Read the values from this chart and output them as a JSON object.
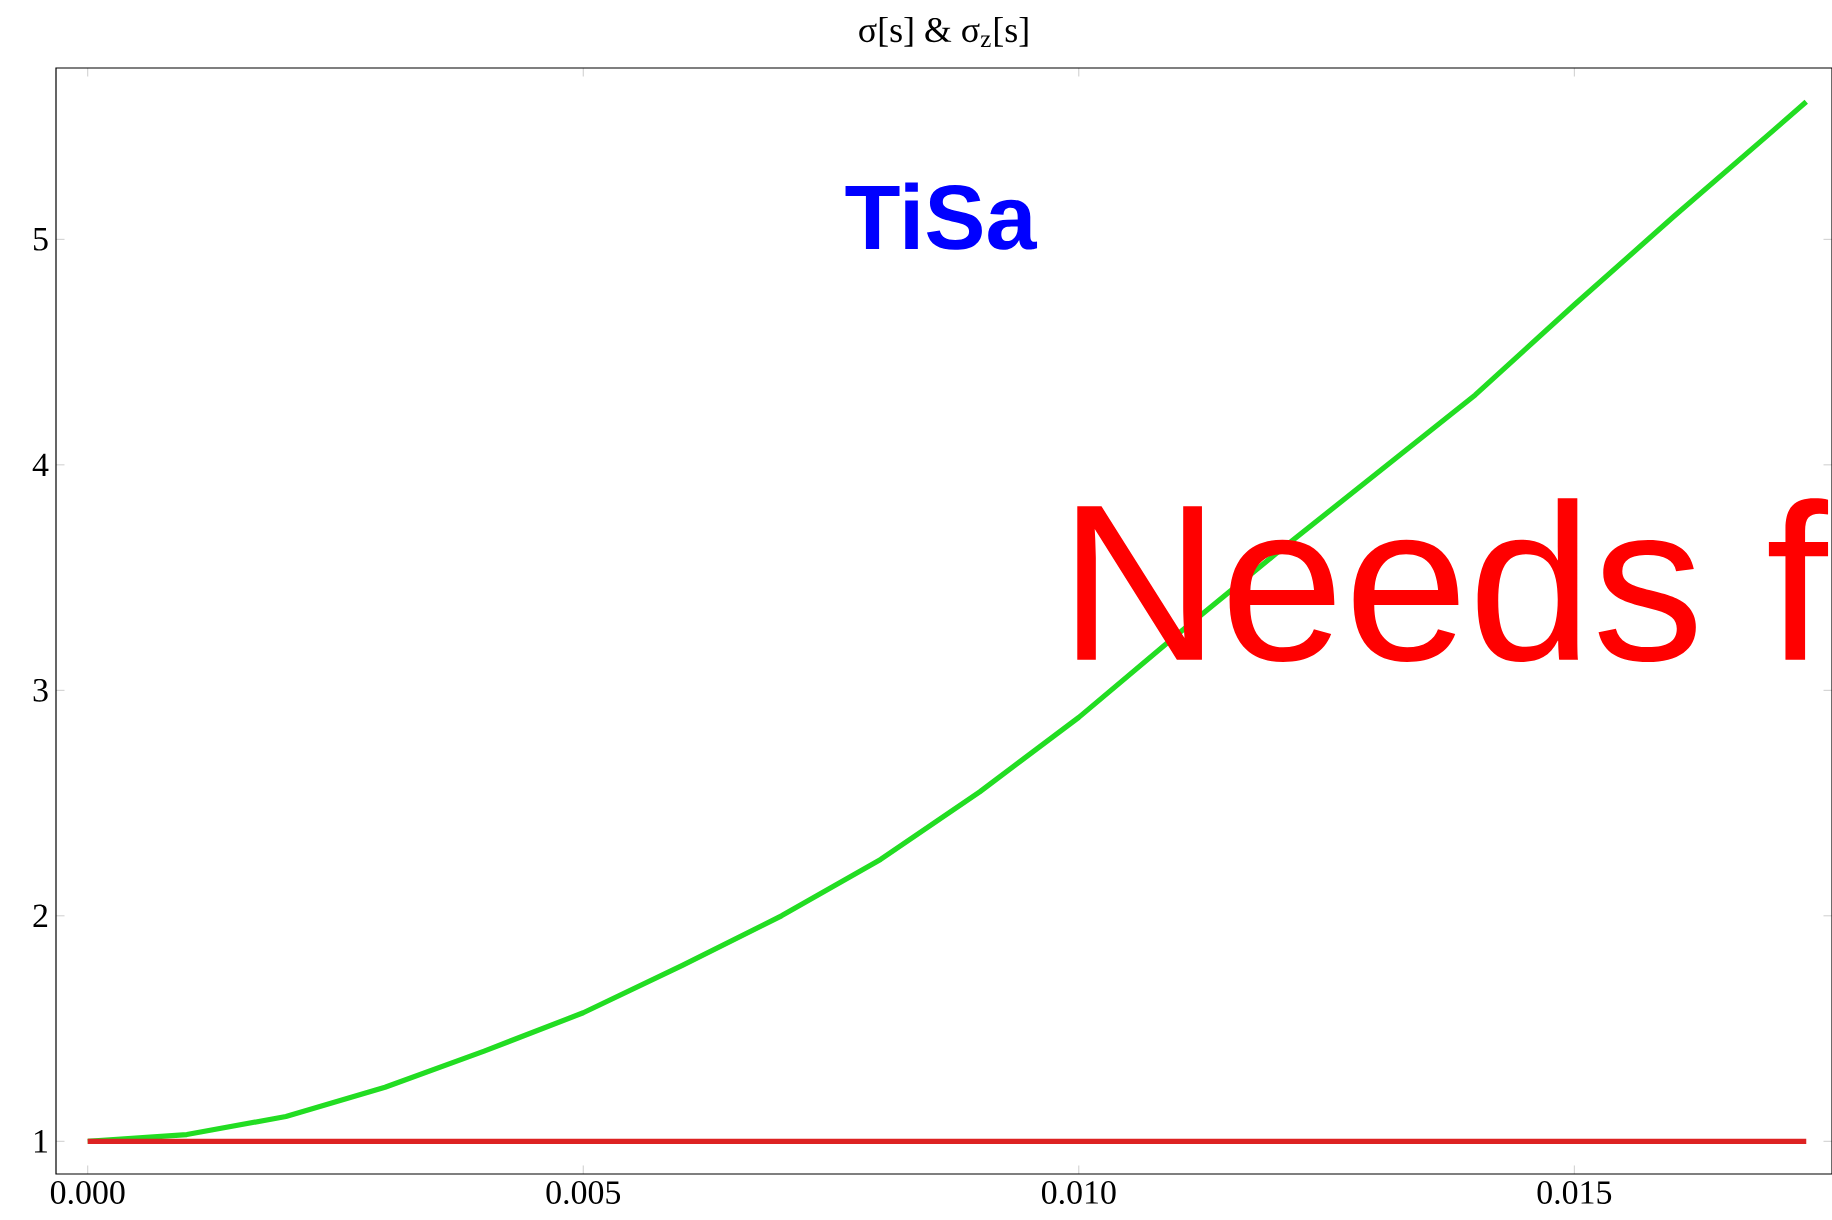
{
  "chart_data": {
    "type": "line",
    "title": "σ[s] & σ$_{z}$[s]",
    "annotations": [
      "TiSa",
      "Needs f"
    ],
    "series": [
      {
        "color": "#22dd22",
        "x": [
          0,
          0.001,
          0.002,
          0.003,
          0.004,
          0.005,
          0.006,
          0.007,
          0.008,
          0.009,
          0.01,
          0.011,
          0.012,
          0.013,
          0.014,
          0.015,
          0.016,
          0.017,
          0.01734
        ],
        "values": [
          1,
          1.03,
          1.11,
          1.24,
          1.4,
          1.57,
          1.78,
          2.0,
          2.25,
          2.55,
          2.88,
          3.25,
          3.61,
          3.96,
          4.31,
          4.71,
          5.1,
          5.48,
          5.61
        ]
      },
      {
        "color": "#dd2222",
        "x": [
          0,
          0.00734,
          0.01734
        ],
        "values": [
          1,
          1,
          1
        ]
      }
    ],
    "xlim": [
      -0.00032,
      0.0176
    ],
    "ylim": [
      0.855,
      5.76
    ],
    "xticks": [
      {
        "value": 0,
        "label": "0.000"
      },
      {
        "value": 0.005,
        "label": "0.005"
      },
      {
        "value": 0.01,
        "label": "0.010"
      },
      {
        "value": 0.015,
        "label": "0.015"
      }
    ],
    "yticks": [
      1,
      2,
      3,
      4,
      5
    ],
    "grid": false,
    "marker": "none",
    "line_style": "solid"
  }
}
